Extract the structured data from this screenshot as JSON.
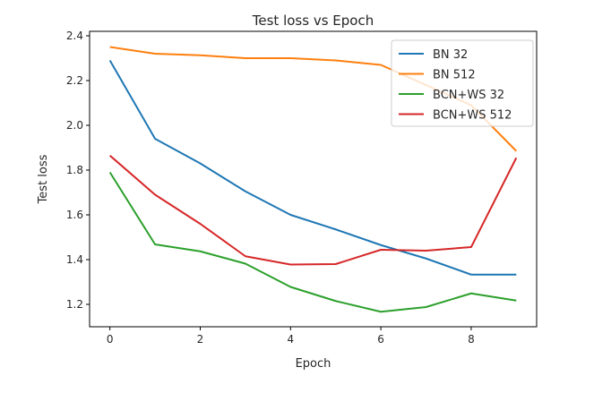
{
  "chart_data": {
    "type": "line",
    "title": "Test loss vs Epoch",
    "xlabel": "Epoch",
    "ylabel": "Test loss",
    "x": [
      0,
      1,
      2,
      3,
      4,
      5,
      6,
      7,
      8,
      9
    ],
    "xlim": [
      -0.45,
      9.45
    ],
    "ylim": [
      1.1,
      2.42
    ],
    "xticks": [
      0,
      2,
      4,
      6,
      8
    ],
    "yticks": [
      1.2,
      1.4,
      1.6,
      1.8,
      2.0,
      2.2,
      2.4
    ],
    "ytick_labels": [
      "1.2",
      "1.4",
      "1.6",
      "1.8",
      "2.0",
      "2.2",
      "2.4"
    ],
    "grid": false,
    "legend_position": "top-right",
    "series": [
      {
        "name": "BN 32",
        "color": "#1f77b4",
        "values": [
          2.29,
          1.94,
          1.83,
          1.705,
          1.6,
          1.535,
          1.465,
          1.405,
          1.333,
          1.333
        ]
      },
      {
        "name": "BN 512",
        "color": "#ff7f0e",
        "values": [
          2.35,
          2.32,
          2.313,
          2.3,
          2.3,
          2.29,
          2.27,
          2.18,
          2.09,
          1.885
        ]
      },
      {
        "name": "BCN+WS 32",
        "color": "#2ca02c",
        "values": [
          1.79,
          1.468,
          1.437,
          1.382,
          1.278,
          1.215,
          1.167,
          1.188,
          1.249,
          1.217
        ]
      },
      {
        "name": "BCN+WS 512",
        "color": "#d62728",
        "values": [
          1.865,
          1.69,
          1.56,
          1.415,
          1.378,
          1.38,
          1.444,
          1.44,
          1.456,
          1.855
        ]
      }
    ]
  }
}
